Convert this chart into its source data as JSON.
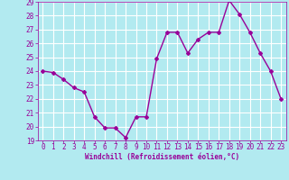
{
  "x": [
    0,
    1,
    2,
    3,
    4,
    5,
    6,
    7,
    8,
    9,
    10,
    11,
    12,
    13,
    14,
    15,
    16,
    17,
    18,
    19,
    20,
    21,
    22,
    23
  ],
  "y": [
    24.0,
    23.9,
    23.4,
    22.8,
    22.5,
    20.7,
    19.9,
    19.9,
    19.2,
    20.7,
    20.7,
    24.9,
    26.8,
    26.8,
    25.3,
    26.3,
    26.8,
    26.8,
    29.1,
    28.1,
    26.8,
    25.3,
    24.0,
    22.0
  ],
  "line_color": "#990099",
  "marker": "D",
  "marker_size": 2,
  "bg_color": "#b2eaf0",
  "grid_color": "#ffffff",
  "xlabel": "Windchill (Refroidissement éolien,°C)",
  "tick_color": "#990099",
  "ylim": [
    19,
    29
  ],
  "xlim": [
    -0.5,
    23.5
  ],
  "yticks": [
    19,
    20,
    21,
    22,
    23,
    24,
    25,
    26,
    27,
    28,
    29
  ],
  "xticks": [
    0,
    1,
    2,
    3,
    4,
    5,
    6,
    7,
    8,
    9,
    10,
    11,
    12,
    13,
    14,
    15,
    16,
    17,
    18,
    19,
    20,
    21,
    22,
    23
  ],
  "xlabel_fontsize": 5.5,
  "tick_fontsize": 5.5,
  "linewidth": 1.0
}
